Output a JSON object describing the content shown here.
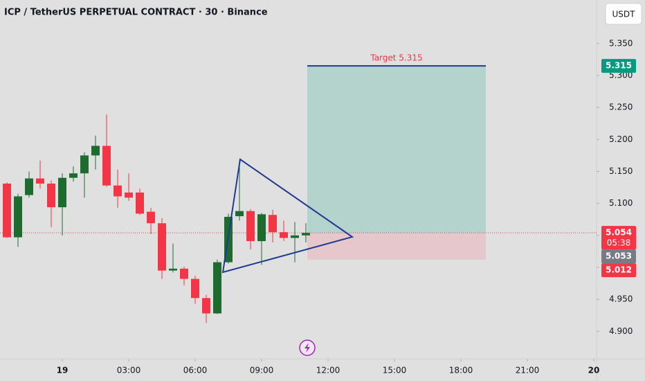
{
  "chart_data": {
    "type": "candlestick",
    "title": "ICP / TetherUS PERPETUAL CONTRACT · 30 · Binance",
    "currency_button": "USDT",
    "x": [
      -2.5,
      -2,
      -1.5,
      -1,
      -0.5,
      0,
      0.5,
      1,
      1.5,
      2,
      2.5,
      3,
      3.5,
      4,
      4.5,
      5,
      5.5,
      6,
      6.5,
      7,
      7.5,
      8,
      8.5,
      9,
      9.5,
      10,
      10.5,
      11
    ],
    "open": [
      5.131,
      5.047,
      5.113,
      5.139,
      5.131,
      5.094,
      5.14,
      5.147,
      5.175,
      5.19,
      5.128,
      5.117,
      5.117,
      5.087,
      5.069,
      4.995,
      4.998,
      4.982,
      4.952,
      4.928,
      5.008,
      5.08,
      5.088,
      5.041,
      5.082,
      5.055,
      5.046,
      5.05
    ],
    "high": [
      5.133,
      5.115,
      5.15,
      5.167,
      5.136,
      5.147,
      5.158,
      5.18,
      5.206,
      5.239,
      5.153,
      5.147,
      5.123,
      5.093,
      5.077,
      5.037,
      5.001,
      4.987,
      4.957,
      5.012,
      5.084,
      5.167,
      5.091,
      5.085,
      5.09,
      5.073,
      5.071,
      5.069
    ],
    "low": [
      5.046,
      5.032,
      5.109,
      5.123,
      5.063,
      5.05,
      5.134,
      5.109,
      5.153,
      5.126,
      5.093,
      5.104,
      5.082,
      5.052,
      4.982,
      4.992,
      4.972,
      4.943,
      4.913,
      4.927,
      5.006,
      5.073,
      5.028,
      5.004,
      5.039,
      5.041,
      5.008,
      5.039
    ],
    "close": [
      5.047,
      5.111,
      5.139,
      5.131,
      5.094,
      5.14,
      5.147,
      5.175,
      5.19,
      5.128,
      5.111,
      5.109,
      5.084,
      5.069,
      4.995,
      4.998,
      4.982,
      4.952,
      4.928,
      5.008,
      5.079,
      5.088,
      5.041,
      5.083,
      5.055,
      5.046,
      5.05,
      5.054
    ],
    "up_color": "#1e6b30",
    "down_color": "#f23645",
    "xlim": [
      -2.8125,
      24.125
    ],
    "xticks": [
      {
        "value": 0,
        "label": "19"
      },
      {
        "value": 3,
        "label": "03:00"
      },
      {
        "value": 6,
        "label": "06:00"
      },
      {
        "value": 9,
        "label": "09:00"
      },
      {
        "value": 12,
        "label": "12:00"
      },
      {
        "value": 15,
        "label": "15:00"
      },
      {
        "value": 18,
        "label": "18:00"
      },
      {
        "value": 21,
        "label": "21:00"
      },
      {
        "value": 24,
        "label": "20"
      }
    ],
    "ylim": [
      4.857,
      5.418
    ],
    "yticks": [
      {
        "value": 4.9,
        "label": "4.900"
      },
      {
        "value": 4.95,
        "label": "4.950"
      },
      {
        "value": 5.0,
        "label": "5.000"
      },
      {
        "value": 5.05,
        "label": "5.050"
      },
      {
        "value": 5.1,
        "label": "5.100"
      },
      {
        "value": 5.15,
        "label": "5.150"
      },
      {
        "value": 5.2,
        "label": "5.200"
      },
      {
        "value": 5.25,
        "label": "5.250"
      },
      {
        "value": 5.3,
        "label": "5.300"
      },
      {
        "value": 5.35,
        "label": "5.350"
      }
    ],
    "position": {
      "target": 5.315,
      "target_label": "Target 5.315",
      "entry": 5.054,
      "stop": 5.012
    },
    "last_price": 5.054,
    "countdown": "05:38",
    "price_labels": [
      {
        "value": 5.315,
        "label": "5.315",
        "color": "#089981"
      },
      {
        "value": 5.054,
        "label": "5.054",
        "color": "#f23645"
      },
      {
        "value": 5.053,
        "label": "5.053",
        "color": "#787b86"
      },
      {
        "value": 5.012,
        "label": "5.012",
        "color": "#f23645"
      }
    ]
  }
}
